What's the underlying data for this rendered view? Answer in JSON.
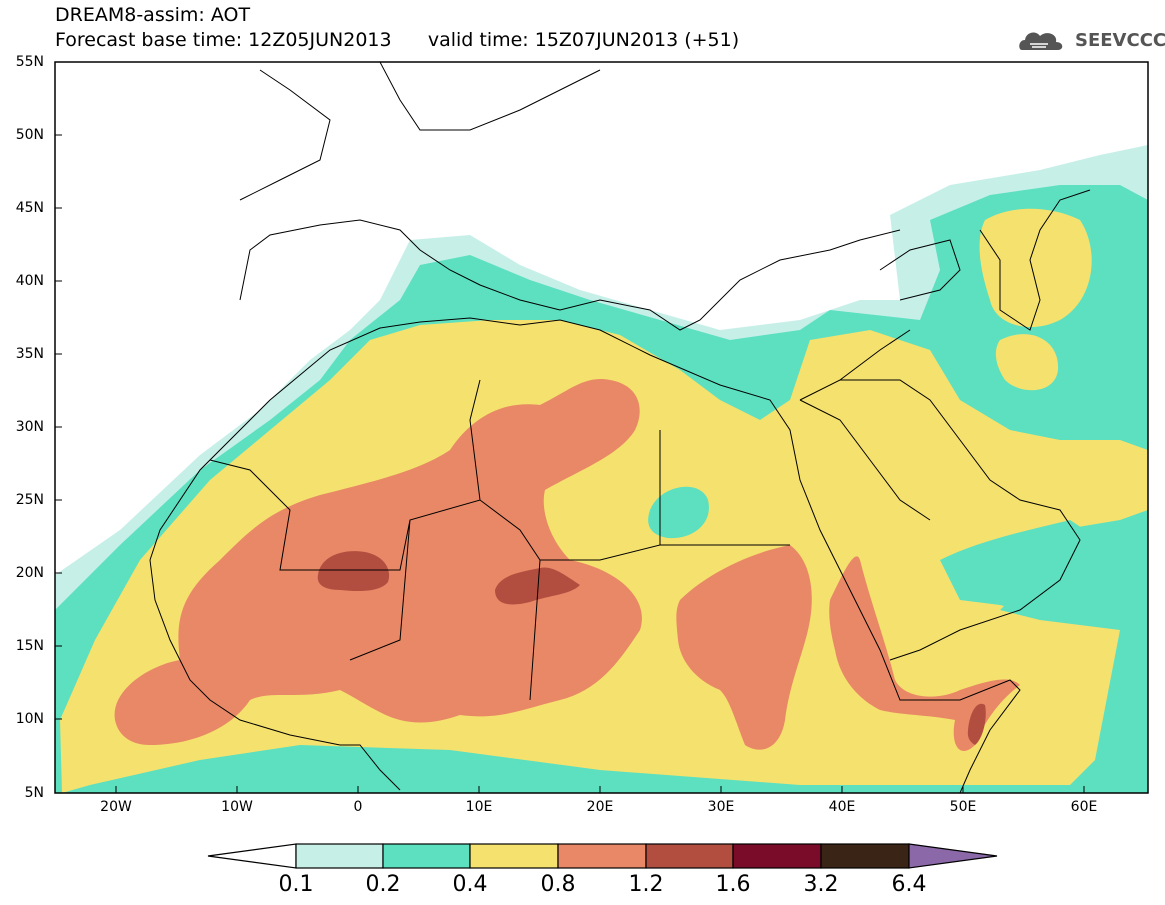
{
  "header": {
    "title_line1": "DREAM8-assim: AOT",
    "title_line2": "Forecast base time: 12Z05JUN2013      valid time: 15Z07JUN2013 (+51)",
    "logo_text": "SEEVCCC",
    "logo_icon": "cloud-logo-icon"
  },
  "axes": {
    "lat_labels": [
      "55N",
      "50N",
      "45N",
      "40N",
      "35N",
      "30N",
      "25N",
      "20N",
      "15N",
      "10N",
      "5N"
    ],
    "lon_labels": [
      "20W",
      "10W",
      "0",
      "10E",
      "20E",
      "30E",
      "40E",
      "50E",
      "60E"
    ]
  },
  "colorbar": {
    "labels": [
      "0.1",
      "0.2",
      "0.4",
      "0.8",
      "1.2",
      "1.6",
      "3.2",
      "6.4"
    ],
    "colors": {
      "below": "#ffffff",
      "c1": "#c6efe8",
      "c2": "#5ce0c0",
      "c3": "#f5e16e",
      "c4": "#e98866",
      "c5": "#b24e40",
      "c6": "#7a0c2a",
      "c7": "#3a2416",
      "above": "#8b68a8"
    }
  }
}
